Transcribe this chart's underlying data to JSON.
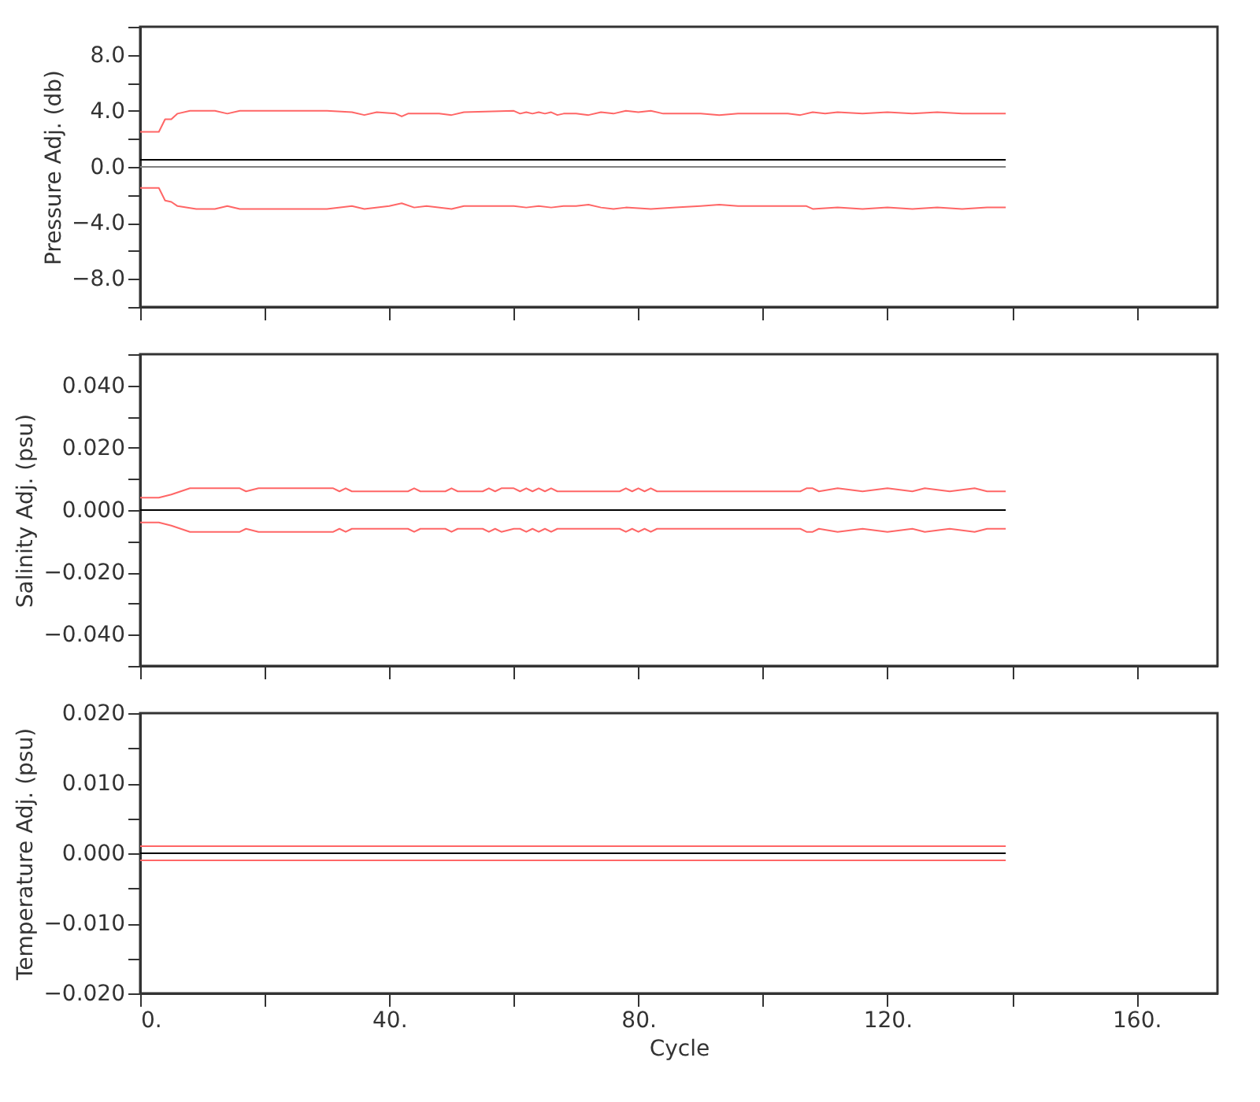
{
  "chart_data": [
    {
      "type": "line",
      "ylabel": "Pressure Adj. (db)",
      "xlim": [
        0,
        173
      ],
      "ylim": [
        -10,
        10
      ],
      "tick_labels": "y",
      "xticks": [
        {
          "value": 0,
          "label": null
        },
        {
          "value": 20,
          "label": null
        },
        {
          "value": 40,
          "label": null
        },
        {
          "value": 60,
          "label": null
        },
        {
          "value": 80,
          "label": null
        },
        {
          "value": 100,
          "label": null
        },
        {
          "value": 120,
          "label": null
        },
        {
          "value": 140,
          "label": null
        },
        {
          "value": 160,
          "label": null
        }
      ],
      "yticks": [
        {
          "value": -10,
          "label": null
        },
        {
          "value": -8,
          "label": "−8.0"
        },
        {
          "value": -6,
          "label": null
        },
        {
          "value": -4,
          "label": "−4.0"
        },
        {
          "value": -2,
          "label": null
        },
        {
          "value": 0,
          "label": "0.0"
        },
        {
          "value": 2,
          "label": null
        },
        {
          "value": 4,
          "label": "4.0"
        },
        {
          "value": 6,
          "label": null
        },
        {
          "value": 8,
          "label": "8.0"
        },
        {
          "value": 10,
          "label": null
        }
      ],
      "series": [
        {
          "color": "#ff6666",
          "x": [
            0,
            3,
            4,
            5,
            6,
            8,
            12,
            14,
            16,
            30,
            34,
            36,
            38,
            41,
            42,
            43,
            48,
            50,
            52,
            60,
            61,
            62,
            63,
            64,
            65,
            66,
            67,
            68,
            70,
            72,
            74,
            76,
            78,
            80,
            82,
            84,
            86,
            90,
            93,
            96,
            104,
            106,
            108,
            110,
            112,
            116,
            120,
            124,
            128,
            132,
            136,
            139
          ],
          "values": [
            2.5,
            2.5,
            3.4,
            3.4,
            3.8,
            4.0,
            4.0,
            3.8,
            4.0,
            4.0,
            3.9,
            3.7,
            3.9,
            3.8,
            3.6,
            3.8,
            3.8,
            3.7,
            3.9,
            4.0,
            3.8,
            3.9,
            3.8,
            3.9,
            3.8,
            3.9,
            3.7,
            3.8,
            3.8,
            3.7,
            3.9,
            3.8,
            4.0,
            3.9,
            4.0,
            3.8,
            3.8,
            3.8,
            3.7,
            3.8,
            3.8,
            3.7,
            3.9,
            3.8,
            3.9,
            3.8,
            3.9,
            3.8,
            3.9,
            3.8,
            3.8,
            3.8
          ]
        },
        {
          "color": "#ff6666",
          "x": [
            0,
            3,
            4,
            5,
            6,
            9,
            12,
            14,
            16,
            30,
            34,
            36,
            40,
            42,
            44,
            46,
            50,
            52,
            60,
            62,
            64,
            66,
            68,
            70,
            72,
            74,
            76,
            78,
            82,
            86,
            90,
            93,
            96,
            104,
            107,
            108,
            112,
            116,
            120,
            124,
            128,
            132,
            136,
            139
          ],
          "values": [
            -1.5,
            -1.5,
            -2.4,
            -2.5,
            -2.8,
            -3.0,
            -3.0,
            -2.8,
            -3.0,
            -3.0,
            -2.8,
            -3.0,
            -2.8,
            -2.6,
            -2.9,
            -2.8,
            -3.0,
            -2.8,
            -2.8,
            -2.9,
            -2.8,
            -2.9,
            -2.8,
            -2.8,
            -2.7,
            -2.9,
            -3.0,
            -2.9,
            -3.0,
            -2.9,
            -2.8,
            -2.7,
            -2.8,
            -2.8,
            -2.8,
            -3.0,
            -2.9,
            -3.0,
            -2.9,
            -3.0,
            -2.9,
            -3.0,
            -2.9,
            -2.9
          ]
        },
        {
          "color": "#000000",
          "x": [
            0,
            139
          ],
          "values": [
            0.5,
            0.5
          ]
        },
        {
          "color": "#808080",
          "x": [
            0,
            139
          ],
          "values": [
            0,
            0
          ]
        }
      ]
    },
    {
      "type": "line",
      "ylabel": "Salinity Adj. (psu)",
      "xlim": [
        0,
        173
      ],
      "ylim": [
        -0.05,
        0.05
      ],
      "tick_labels": "y",
      "xticks": [
        {
          "value": 0,
          "label": null
        },
        {
          "value": 20,
          "label": null
        },
        {
          "value": 40,
          "label": null
        },
        {
          "value": 60,
          "label": null
        },
        {
          "value": 80,
          "label": null
        },
        {
          "value": 100,
          "label": null
        },
        {
          "value": 120,
          "label": null
        },
        {
          "value": 140,
          "label": null
        },
        {
          "value": 160,
          "label": null
        }
      ],
      "yticks": [
        {
          "value": -0.05,
          "label": null
        },
        {
          "value": -0.04,
          "label": "−0.040"
        },
        {
          "value": -0.03,
          "label": null
        },
        {
          "value": -0.02,
          "label": "−0.020"
        },
        {
          "value": -0.01,
          "label": null
        },
        {
          "value": 0,
          "label": "0.000"
        },
        {
          "value": 0.01,
          "label": null
        },
        {
          "value": 0.02,
          "label": "0.020"
        },
        {
          "value": 0.03,
          "label": null
        },
        {
          "value": 0.04,
          "label": "0.040"
        },
        {
          "value": 0.05,
          "label": null
        }
      ],
      "series": [
        {
          "color": "#ff6666",
          "x": [
            0,
            3,
            5,
            8,
            16,
            17,
            19,
            31,
            32,
            33,
            34,
            43,
            44,
            45,
            49,
            50,
            51,
            55,
            56,
            57,
            58,
            60,
            61,
            62,
            63,
            64,
            65,
            66,
            67,
            69,
            77,
            78,
            79,
            80,
            81,
            82,
            83,
            100,
            106,
            107,
            108,
            109,
            112,
            116,
            120,
            124,
            126,
            130,
            134,
            136,
            139
          ],
          "values": [
            0.004,
            0.004,
            0.005,
            0.007,
            0.007,
            0.006,
            0.007,
            0.007,
            0.006,
            0.007,
            0.006,
            0.006,
            0.007,
            0.006,
            0.006,
            0.007,
            0.006,
            0.006,
            0.007,
            0.006,
            0.007,
            0.007,
            0.006,
            0.007,
            0.006,
            0.007,
            0.006,
            0.007,
            0.006,
            0.006,
            0.006,
            0.007,
            0.006,
            0.007,
            0.006,
            0.007,
            0.006,
            0.006,
            0.006,
            0.007,
            0.007,
            0.006,
            0.007,
            0.006,
            0.007,
            0.006,
            0.007,
            0.006,
            0.007,
            0.006,
            0.006
          ]
        },
        {
          "color": "#ff6666",
          "x": [
            0,
            3,
            5,
            8,
            16,
            17,
            19,
            31,
            32,
            33,
            34,
            43,
            44,
            45,
            49,
            50,
            51,
            55,
            56,
            57,
            58,
            60,
            61,
            62,
            63,
            64,
            65,
            66,
            67,
            69,
            77,
            78,
            79,
            80,
            81,
            82,
            83,
            100,
            106,
            107,
            108,
            109,
            112,
            116,
            120,
            124,
            126,
            130,
            134,
            136,
            139
          ],
          "values": [
            -0.004,
            -0.004,
            -0.005,
            -0.007,
            -0.007,
            -0.006,
            -0.007,
            -0.007,
            -0.006,
            -0.007,
            -0.006,
            -0.006,
            -0.007,
            -0.006,
            -0.006,
            -0.007,
            -0.006,
            -0.006,
            -0.007,
            -0.006,
            -0.007,
            -0.006,
            -0.006,
            -0.007,
            -0.006,
            -0.007,
            -0.006,
            -0.007,
            -0.006,
            -0.006,
            -0.006,
            -0.007,
            -0.006,
            -0.007,
            -0.006,
            -0.007,
            -0.006,
            -0.006,
            -0.006,
            -0.007,
            -0.007,
            -0.006,
            -0.007,
            -0.006,
            -0.007,
            -0.006,
            -0.007,
            -0.006,
            -0.007,
            -0.006,
            -0.006
          ]
        },
        {
          "color": "#000000",
          "x": [
            0,
            139
          ],
          "values": [
            0,
            0
          ]
        }
      ]
    },
    {
      "type": "line",
      "ylabel": "Temperature Adj. (psu)",
      "xlabel": "Cycle",
      "xlim": [
        0,
        173
      ],
      "ylim": [
        -0.02,
        0.02
      ],
      "xticks": [
        {
          "value": 0,
          "label": "0."
        },
        {
          "value": 20,
          "label": null
        },
        {
          "value": 40,
          "label": "40."
        },
        {
          "value": 60,
          "label": null
        },
        {
          "value": 80,
          "label": "80."
        },
        {
          "value": 100,
          "label": null
        },
        {
          "value": 120,
          "label": "120."
        },
        {
          "value": 140,
          "label": null
        },
        {
          "value": 160,
          "label": "160."
        }
      ],
      "yticks": [
        {
          "value": -0.02,
          "label": "−0.020"
        },
        {
          "value": -0.015,
          "label": null
        },
        {
          "value": -0.01,
          "label": "−0.010"
        },
        {
          "value": -0.005,
          "label": null
        },
        {
          "value": 0,
          "label": "0.000"
        },
        {
          "value": 0.005,
          "label": null
        },
        {
          "value": 0.01,
          "label": "0.010"
        },
        {
          "value": 0.015,
          "label": null
        },
        {
          "value": 0.02,
          "label": "0.020"
        }
      ],
      "series": [
        {
          "color": "#ff6666",
          "x": [
            0,
            139
          ],
          "values": [
            0.001,
            0.001
          ]
        },
        {
          "color": "#ff6666",
          "x": [
            0,
            139
          ],
          "values": [
            -0.001,
            -0.001
          ]
        },
        {
          "color": "#000000",
          "x": [
            0,
            139
          ],
          "values": [
            0,
            0
          ]
        }
      ]
    }
  ]
}
